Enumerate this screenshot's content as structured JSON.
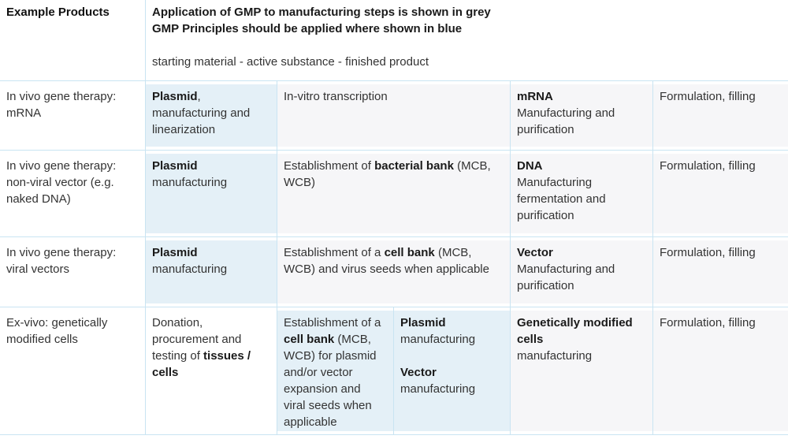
{
  "colors": {
    "page_bg": "#ffffff",
    "cell_blue": "#e4f0f7",
    "cell_grey": "#f6f6f8",
    "line": "#c9e4f2",
    "text": "#333333",
    "text_bold": "#1a1a1a",
    "legend_grey": "#808487",
    "legend_blue": "#56b3de"
  },
  "header": {
    "example_products_label": "Example Products",
    "legend": [
      {
        "t": "Application of GMP to manufacturing steps is shown in grey",
        "b": true,
        "cls": "grey"
      },
      {
        "t": "\n"
      },
      {
        "t": "GMP Principles should be applied where shown in blue",
        "b": true,
        "cls": "blue"
      },
      {
        "t": "\n\n"
      },
      {
        "t": "starting material - active substance - finished product"
      }
    ]
  },
  "rows": [
    {
      "cells": [
        {
          "bg": "white",
          "segments": [
            {
              "t": "In vivo gene therapy: mRNA"
            }
          ]
        },
        {
          "bg": "blue",
          "segments": [
            {
              "t": "Plasmid",
              "b": true
            },
            {
              "t": ", manufacturing and linearization"
            }
          ]
        },
        {
          "bg": "grey",
          "segments": [
            {
              "t": "In-vitro transcription"
            }
          ]
        },
        {
          "bg": "grey",
          "segments": [
            {
              "t": "mRNA",
              "b": true
            },
            {
              "t": "\nManufacturing and purification"
            }
          ]
        },
        {
          "bg": "grey",
          "segments": [
            {
              "t": "Formulation, filling"
            }
          ]
        }
      ]
    },
    {
      "cells": [
        {
          "bg": "white",
          "segments": [
            {
              "t": "In vivo gene therapy: non-viral vector (e.g. naked DNA)"
            }
          ]
        },
        {
          "bg": "blue",
          "segments": [
            {
              "t": "Plasmid",
              "b": true
            },
            {
              "t": "\nmanufacturing"
            }
          ]
        },
        {
          "bg": "grey",
          "segments": [
            {
              "t": "Establishment of "
            },
            {
              "t": "bacterial bank",
              "b": true
            },
            {
              "t": " (MCB, WCB)"
            }
          ]
        },
        {
          "bg": "grey",
          "segments": [
            {
              "t": "DNA",
              "b": true
            },
            {
              "t": "\nManufacturing fermentation and purification"
            }
          ]
        },
        {
          "bg": "grey",
          "segments": [
            {
              "t": "Formulation, filling"
            }
          ]
        }
      ]
    },
    {
      "cells": [
        {
          "bg": "white",
          "segments": [
            {
              "t": "In vivo gene therapy: viral vectors"
            }
          ]
        },
        {
          "bg": "blue",
          "segments": [
            {
              "t": "Plasmid",
              "b": true
            },
            {
              "t": "\nmanufacturing"
            }
          ]
        },
        {
          "bg": "grey",
          "segments": [
            {
              "t": "Establishment of a "
            },
            {
              "t": "cell bank",
              "b": true
            },
            {
              "t": " (MCB, WCB) and virus seeds when applicable"
            }
          ]
        },
        {
          "bg": "grey",
          "segments": [
            {
              "t": "Vector",
              "b": true
            },
            {
              "t": "\nManufacturing and purification"
            }
          ]
        },
        {
          "bg": "grey",
          "segments": [
            {
              "t": "Formulation, filling"
            }
          ]
        }
      ]
    },
    {
      "cells": [
        {
          "bg": "white",
          "segments": [
            {
              "t": "Ex-vivo: genetically modified cells"
            }
          ]
        },
        {
          "bg": "white",
          "segments": [
            {
              "t": "Donation, procurement and testing of "
            },
            {
              "t": "tissues / cells",
              "b": true
            }
          ]
        },
        {
          "bg": "blue",
          "segments": [
            {
              "t": "Establishment of a "
            },
            {
              "t": "cell bank",
              "b": true
            },
            {
              "t": " (MCB, WCB) for plasmid and/or vector expansion and viral seeds when applicable"
            }
          ]
        },
        {
          "bg": "blue",
          "segments": [
            {
              "t": "Plasmid",
              "b": true
            },
            {
              "t": "\nmanufacturing\n\n"
            },
            {
              "t": "Vector",
              "b": true
            },
            {
              "t": "\nmanufacturing"
            }
          ]
        },
        {
          "bg": "grey",
          "segments": [
            {
              "t": "Genetically modified cells",
              "b": true
            },
            {
              "t": "\nmanufacturing"
            }
          ]
        },
        {
          "bg": "grey",
          "segments": [
            {
              "t": "Formulation, filling"
            }
          ]
        }
      ]
    }
  ]
}
